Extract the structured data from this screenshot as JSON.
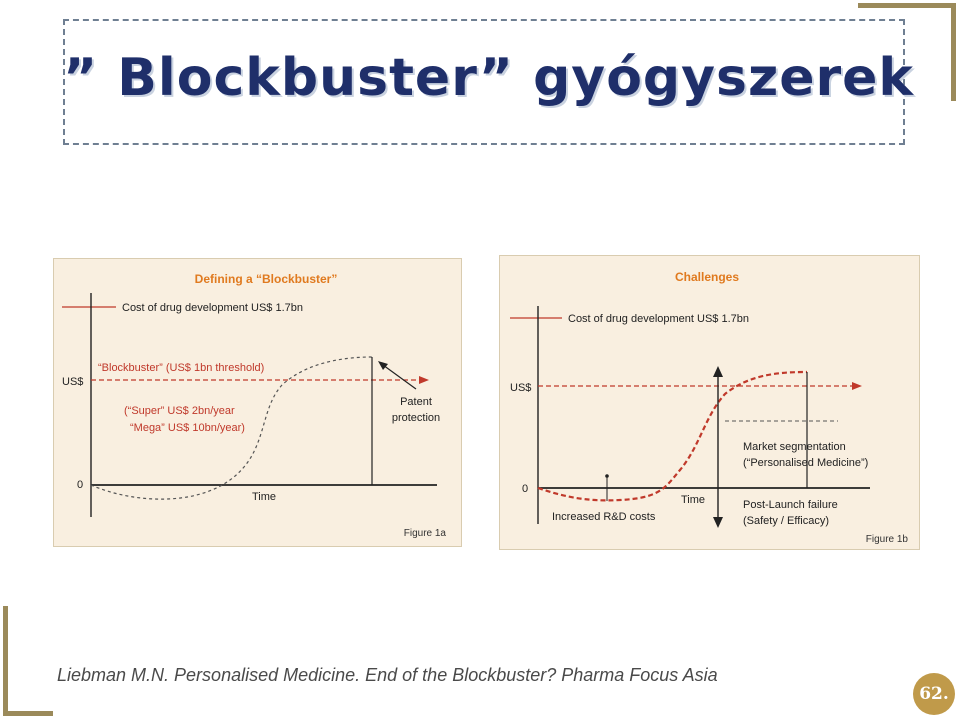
{
  "slide": {
    "title": "” Blockbuster” gyógyszerek",
    "citation": "Liebman M.N. Personalised Medicine. End of the Blockbuster? Pharma Focus Asia",
    "page_number": "62.",
    "accent_color": "#9b8a5a",
    "title_color": "#1f2f6a"
  },
  "figure_a": {
    "title": "Defining a “Blockbuster”",
    "cost_label": "Cost of drug development US$ 1.7bn",
    "threshold_label": "“Blockbuster” (US$ 1bn threshold)",
    "y_label": "US$",
    "zero_label": "0",
    "x_label": "Time",
    "super_label": "(“Super” US$ 2bn/year",
    "mega_label": "“Mega” US$ 10bn/year)",
    "patent_label_1": "Patent",
    "patent_label_2": "protection",
    "figure_label": "Figure 1a"
  },
  "figure_b": {
    "title": "Challenges",
    "cost_label": "Cost of drug development US$ 1.7bn",
    "y_label": "US$",
    "zero_label": "0",
    "x_label": "Time",
    "rd_label": "Increased R&D costs",
    "segmentation_label_1": "Market segmentation",
    "segmentation_label_2": "(“Personalised Medicine”)",
    "failure_label_1": "Post-Launch failure",
    "failure_label_2": "(Safety / Efficacy)",
    "figure_label": "Figure 1b"
  },
  "colors": {
    "figure_title": "#e07a1f",
    "red_line": "#c0392b",
    "panel_bg": "#f9efe0"
  }
}
